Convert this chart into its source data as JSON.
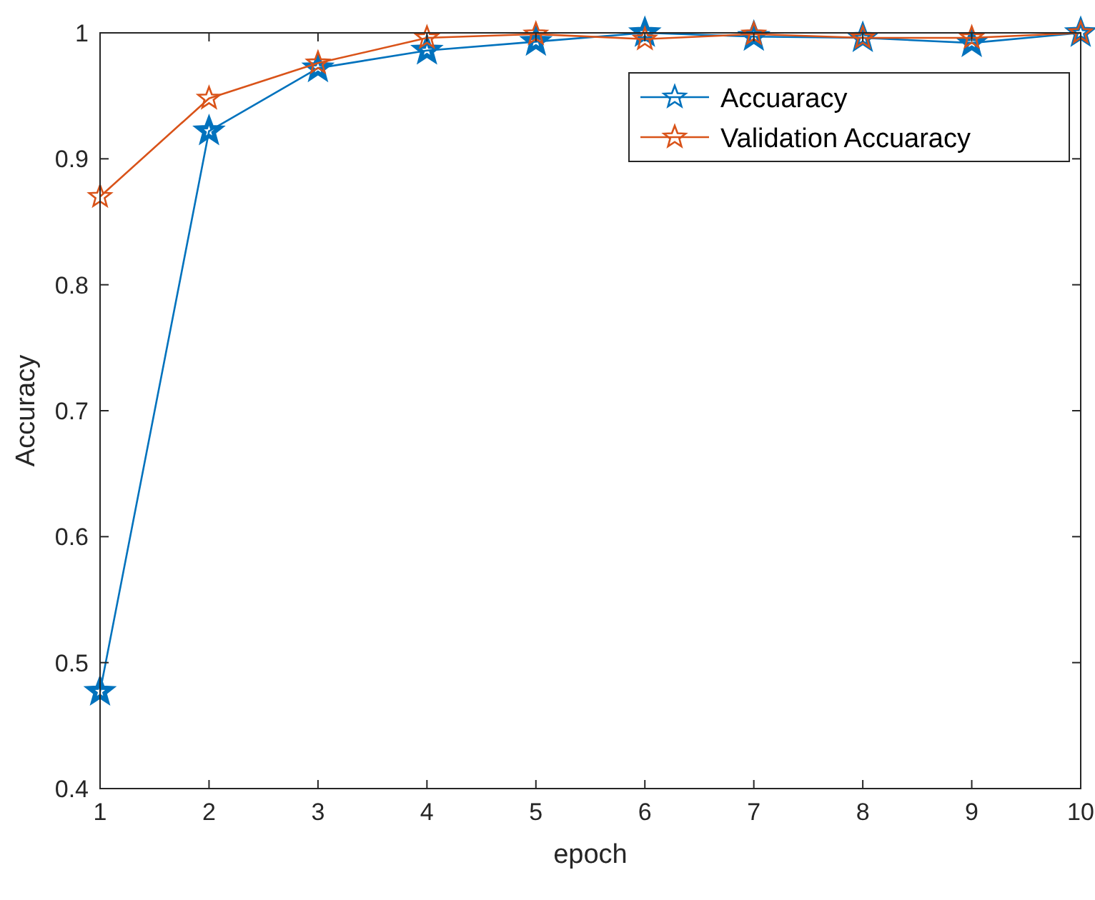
{
  "chart_data": {
    "type": "line",
    "xlabel": "epoch",
    "ylabel": "Accuracy",
    "x": [
      1,
      2,
      3,
      4,
      5,
      6,
      7,
      8,
      9,
      10
    ],
    "xlim": [
      1,
      10
    ],
    "xticks": [
      1,
      2,
      3,
      4,
      5,
      6,
      7,
      8,
      9,
      10
    ],
    "ylim": [
      0.4,
      1
    ],
    "yticks": [
      0.4,
      0.5,
      0.6,
      0.7,
      0.8,
      0.9,
      1
    ],
    "marker": "star",
    "legend": "top right",
    "grid": false,
    "series": [
      {
        "name": "Accuaracy",
        "color": "#0072bd",
        "values": [
          0.477,
          0.922,
          0.972,
          0.986,
          0.993,
          1.0,
          0.997,
          0.996,
          0.992,
          1.0
        ]
      },
      {
        "name": "Validation Accuaracy",
        "color": "#d95319",
        "values": [
          0.87,
          0.948,
          0.976,
          0.996,
          0.999,
          0.995,
          0.999,
          0.996,
          0.996,
          1.0
        ]
      }
    ]
  }
}
